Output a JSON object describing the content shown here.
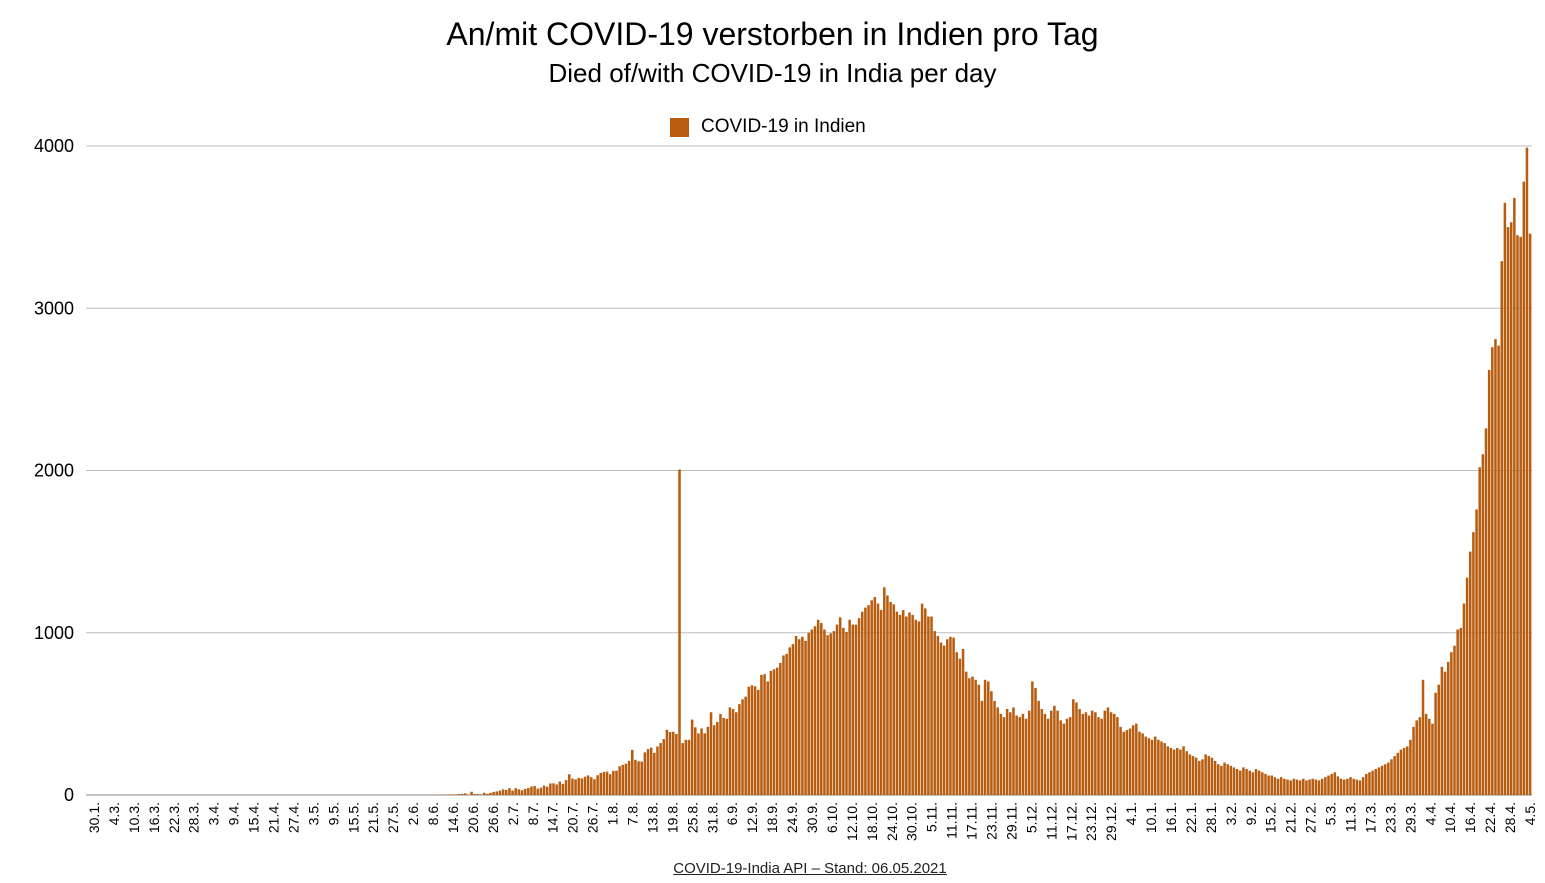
{
  "chart_data": {
    "type": "bar",
    "title": "An/mit COVID-19 verstorben in Indien pro Tag",
    "subtitle": "Died of/with COVID-19 in India per day",
    "legend": {
      "label": "COVID-19 in Indien",
      "position": "top-center"
    },
    "source": "COVID-19-India API – Stand: 06.05.2021",
    "ylim": [
      0,
      4000
    ],
    "yticks": [
      0,
      1000,
      2000,
      3000,
      4000
    ],
    "grid": true,
    "bar_color": "#b85c0f",
    "x_tick_labels": [
      "30.1.",
      "4.3.",
      "10.3.",
      "16.3.",
      "22.3.",
      "28.3.",
      "3.4.",
      "9.4.",
      "15.4.",
      "21.4.",
      "27.4.",
      "3.5.",
      "9.5.",
      "15.5.",
      "21.5.",
      "27.5.",
      "2.6.",
      "8.6.",
      "14.6.",
      "20.6.",
      "26.6.",
      "2.7.",
      "8.7.",
      "14.7.",
      "20.7.",
      "26.7.",
      "1.8.",
      "7.8.",
      "13.8.",
      "19.8.",
      "25.8.",
      "31.8.",
      "6.9.",
      "12.9.",
      "18.9.",
      "24.9.",
      "30.9.",
      "6.10.",
      "12.10.",
      "18.10.",
      "24.10.",
      "30.10.",
      "5.11.",
      "11.11.",
      "17.11.",
      "23.11.",
      "29.11.",
      "5.12.",
      "11.12.",
      "17.12.",
      "23.12.",
      "29.12.",
      "4.1.",
      "10.1.",
      "16.1.",
      "22.1.",
      "28.1.",
      "3.2.",
      "9.2.",
      "15.2.",
      "21.2.",
      "27.2.",
      "5.3.",
      "11.3.",
      "17.3.",
      "23.3.",
      "29.3.",
      "4.4.",
      "10.4.",
      "16.4.",
      "22.4.",
      "28.4.",
      "4.5."
    ],
    "series": [
      {
        "name": "COVID-19 in Indien",
        "values": [
          0,
          0,
          0,
          0,
          0,
          0,
          0,
          0,
          0,
          0,
          0,
          0,
          0,
          0,
          0,
          0,
          0,
          0,
          0,
          0,
          0,
          0,
          0,
          0,
          0,
          0,
          0,
          0,
          0,
          0,
          0,
          0,
          0,
          0,
          0,
          0,
          0,
          0,
          0,
          0,
          0,
          0,
          0,
          0,
          0,
          0,
          0,
          0,
          0,
          0,
          0,
          0,
          0,
          0,
          0,
          0,
          0,
          0,
          0,
          0,
          0,
          0,
          0,
          0,
          0,
          0,
          0,
          0,
          0,
          0,
          0,
          0,
          0,
          0,
          0,
          0,
          0,
          0,
          0,
          0,
          0,
          0,
          0,
          0,
          0,
          0,
          0,
          0,
          0,
          0,
          0,
          0,
          0,
          0,
          0,
          0,
          0,
          0,
          0,
          0,
          0,
          0,
          0,
          0,
          0,
          0,
          1,
          0,
          0,
          0,
          1,
          2,
          1,
          3,
          2,
          4,
          4,
          4,
          6,
          7,
          10,
          3,
          20,
          6,
          6,
          4,
          14,
          7,
          13,
          19,
          22,
          27,
          35,
          31,
          42,
          28,
          42,
          35,
          29,
          38,
          43,
          52,
          55,
          39,
          45,
          58,
          51,
          71,
          72,
          65,
          83,
          69,
          92,
          128,
          101,
          96,
          105,
          102,
          113,
          121,
          109,
          97,
          122,
          136,
          142,
          144,
          128,
          149,
          150,
          177,
          186,
          193,
          210,
          278,
          217,
          208,
          206,
          263,
          283,
          292,
          260,
          299,
          320,
          345,
          402,
          388,
          390,
          376,
          2006,
          320,
          340,
          340,
          465,
          417,
          380,
          410,
          380,
          420,
          510,
          430,
          450,
          500,
          475,
          470,
          540,
          530,
          510,
          560,
          590,
          606,
          667,
          676,
          670,
          648,
          740,
          745,
          700,
          765,
          775,
          785,
          814,
          860,
          870,
          910,
          930,
          980,
          960,
          975,
          950,
          1000,
          1020,
          1040,
          1080,
          1060,
          1020,
          985,
          996,
          1010,
          1050,
          1095,
          1030,
          1005,
          1080,
          1050,
          1050,
          1090,
          1130,
          1155,
          1170,
          1200,
          1220,
          1180,
          1140,
          1280,
          1230,
          1190,
          1175,
          1130,
          1110,
          1140,
          1100,
          1125,
          1110,
          1080,
          1070,
          1180,
          1150,
          1100,
          1100,
          1010,
          980,
          940,
          920,
          960,
          975,
          970,
          880,
          840,
          900,
          760,
          720,
          730,
          710,
          680,
          580,
          710,
          700,
          640,
          580,
          540,
          500,
          480,
          530,
          510,
          540,
          490,
          480,
          500,
          470,
          520,
          700,
          660,
          580,
          530,
          500,
          470,
          520,
          550,
          520,
          460,
          440,
          470,
          480,
          590,
          570,
          530,
          500,
          510,
          490,
          520,
          510,
          480,
          470,
          520,
          540,
          510,
          500,
          480,
          420,
          390,
          400,
          410,
          430,
          440,
          390,
          380,
          360,
          350,
          340,
          360,
          340,
          330,
          320,
          300,
          290,
          280,
          290,
          280,
          300,
          270,
          250,
          240,
          230,
          210,
          220,
          250,
          240,
          230,
          210,
          190,
          180,
          200,
          190,
          180,
          170,
          160,
          150,
          170,
          160,
          150,
          140,
          160,
          150,
          140,
          130,
          120,
          120,
          110,
          100,
          110,
          100,
          95,
          90,
          100,
          95,
          90,
          100,
          90,
          95,
          100,
          95,
          90,
          100,
          110,
          120,
          130,
          140,
          115,
          100,
          95,
          100,
          110,
          100,
          95,
          90,
          110,
          130,
          140,
          150,
          160,
          170,
          180,
          190,
          200,
          220,
          240,
          260,
          280,
          290,
          300,
          340,
          420,
          460,
          480,
          710,
          500,
          470,
          440,
          630,
          680,
          790,
          760,
          820,
          880,
          920,
          1020,
          1030,
          1180,
          1340,
          1500,
          1620,
          1760,
          2020,
          2100,
          2260,
          2620,
          2760,
          2810,
          2770,
          3290,
          3650,
          3500,
          3530,
          3680,
          3450,
          3440,
          3780,
          3990,
          3460
        ]
      }
    ]
  }
}
